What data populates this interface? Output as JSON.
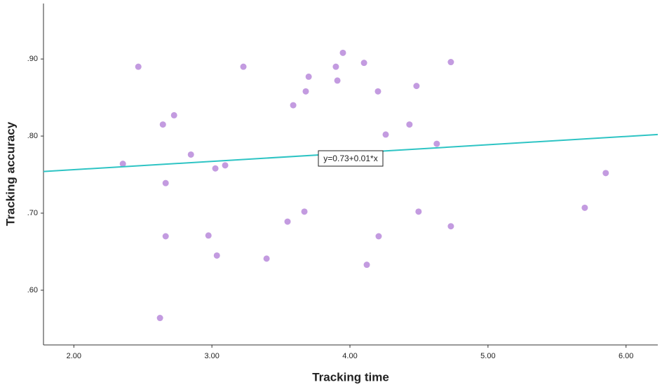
{
  "chart_data": {
    "type": "scatter",
    "x_label": "Tracking time",
    "y_label": "Tracking accuracy",
    "xlim": [
      1.78,
      6.23
    ],
    "ylim": [
      0.529,
      0.972
    ],
    "xticks": [
      {
        "value": 2,
        "label": "2.00"
      },
      {
        "value": 3,
        "label": "3.00"
      },
      {
        "value": 4,
        "label": "4.00"
      },
      {
        "value": 5,
        "label": "5.00"
      },
      {
        "value": 6,
        "label": "6.00"
      }
    ],
    "yticks": [
      {
        "value": 0.6,
        "label": ".60"
      },
      {
        "value": 0.7,
        "label": ".70"
      },
      {
        "value": 0.8,
        "label": ".80"
      },
      {
        "value": 0.9,
        "label": ".90"
      }
    ],
    "grid": false,
    "color": "#c39be0",
    "x": [
      2.355,
      2.467,
      2.645,
      2.726,
      2.665,
      2.665,
      2.624,
      2.848,
      2.975,
      3.025,
      3.096,
      3.036,
      3.228,
      3.396,
      3.548,
      3.589,
      3.68,
      3.701,
      3.67,
      3.898,
      3.909,
      3.949,
      4.102,
      4.122,
      4.203,
      4.208,
      4.259,
      4.431,
      4.482,
      4.497,
      4.629,
      4.731,
      4.731,
      5.701,
      5.853
    ],
    "y": [
      0.764,
      0.89,
      0.815,
      0.827,
      0.739,
      0.67,
      0.564,
      0.776,
      0.671,
      0.758,
      0.762,
      0.645,
      0.89,
      0.641,
      0.689,
      0.84,
      0.858,
      0.877,
      0.702,
      0.89,
      0.872,
      0.908,
      0.895,
      0.633,
      0.858,
      0.67,
      0.802,
      0.815,
      0.865,
      0.702,
      0.79,
      0.896,
      0.683,
      0.707,
      0.752
    ],
    "fit": {
      "label": "y=0.73+0.01*x",
      "x": [
        1.78,
        6.23
      ],
      "y": [
        0.754,
        0.802
      ],
      "color": "#2ec4c4"
    }
  }
}
